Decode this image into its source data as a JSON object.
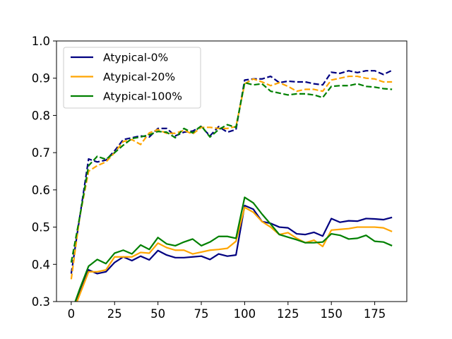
{
  "chart_data": {
    "type": "line",
    "title": "",
    "xlabel": "",
    "ylabel": "",
    "xlim": [
      -8.5,
      193.5
    ],
    "ylim": [
      0.3,
      1.0
    ],
    "xticks": [
      0,
      25,
      50,
      75,
      100,
      125,
      150,
      175
    ],
    "yticks": [
      0.3,
      0.4,
      0.5,
      0.6,
      0.7,
      0.8,
      0.9,
      1.0
    ],
    "grid": false,
    "legend_position": "top-left",
    "x": [
      0,
      5,
      10,
      15,
      20,
      25,
      30,
      35,
      40,
      45,
      50,
      55,
      60,
      65,
      70,
      75,
      80,
      85,
      90,
      95,
      100,
      105,
      110,
      115,
      120,
      125,
      130,
      135,
      140,
      145,
      150,
      155,
      160,
      165,
      170,
      175,
      180,
      185
    ],
    "series": [
      {
        "name": "Atypical-0%",
        "color": "#000080",
        "style": "solid",
        "values": [
          0.27,
          0.33,
          0.385,
          0.375,
          0.38,
          0.405,
          0.42,
          0.41,
          0.422,
          0.412,
          0.437,
          0.425,
          0.418,
          0.418,
          0.42,
          0.422,
          0.413,
          0.428,
          0.422,
          0.425,
          0.558,
          0.548,
          0.515,
          0.51,
          0.5,
          0.498,
          0.482,
          0.48,
          0.486,
          0.476,
          0.523,
          0.513,
          0.517,
          0.516,
          0.523,
          0.522,
          0.52,
          0.526
        ]
      },
      {
        "name": "Atypical-20%",
        "color": "#ffa500",
        "style": "solid",
        "values": [
          0.26,
          0.32,
          0.38,
          0.38,
          0.385,
          0.42,
          0.42,
          0.42,
          0.432,
          0.43,
          0.457,
          0.445,
          0.438,
          0.438,
          0.428,
          0.433,
          0.438,
          0.44,
          0.443,
          0.462,
          0.553,
          0.54,
          0.515,
          0.5,
          0.48,
          0.485,
          0.47,
          0.458,
          0.465,
          0.448,
          0.492,
          0.494,
          0.496,
          0.5,
          0.5,
          0.5,
          0.498,
          0.488
        ]
      },
      {
        "name": "Atypical-100%",
        "color": "#008000",
        "style": "solid",
        "values": [
          0.27,
          0.335,
          0.395,
          0.413,
          0.402,
          0.43,
          0.438,
          0.428,
          0.452,
          0.44,
          0.472,
          0.455,
          0.45,
          0.46,
          0.468,
          0.45,
          0.46,
          0.475,
          0.475,
          0.47,
          0.58,
          0.565,
          0.535,
          0.508,
          0.48,
          0.473,
          0.466,
          0.458,
          0.458,
          0.46,
          0.482,
          0.478,
          0.468,
          0.47,
          0.478,
          0.462,
          0.46,
          0.45
        ]
      },
      {
        "name": "",
        "color": "#000080",
        "style": "dashed",
        "values": [
          0.375,
          0.53,
          0.683,
          0.675,
          0.68,
          0.705,
          0.735,
          0.74,
          0.745,
          0.742,
          0.765,
          0.765,
          0.745,
          0.755,
          0.758,
          0.77,
          0.745,
          0.77,
          0.755,
          0.762,
          0.895,
          0.898,
          0.898,
          0.905,
          0.888,
          0.892,
          0.89,
          0.89,
          0.885,
          0.882,
          0.916,
          0.913,
          0.92,
          0.915,
          0.92,
          0.92,
          0.91,
          0.921
        ]
      },
      {
        "name": "",
        "color": "#ffa500",
        "style": "dashed",
        "values": [
          0.36,
          0.53,
          0.65,
          0.665,
          0.675,
          0.7,
          0.73,
          0.735,
          0.722,
          0.753,
          0.762,
          0.752,
          0.752,
          0.76,
          0.75,
          0.768,
          0.768,
          0.765,
          0.765,
          0.77,
          0.885,
          0.898,
          0.89,
          0.88,
          0.888,
          0.878,
          0.865,
          0.87,
          0.87,
          0.865,
          0.895,
          0.9,
          0.905,
          0.905,
          0.9,
          0.898,
          0.89,
          0.89
        ]
      },
      {
        "name": "",
        "color": "#008000",
        "style": "dashed",
        "values": [
          0.405,
          0.53,
          0.665,
          0.69,
          0.682,
          0.7,
          0.72,
          0.738,
          0.742,
          0.748,
          0.757,
          0.755,
          0.74,
          0.765,
          0.753,
          0.772,
          0.742,
          0.762,
          0.775,
          0.768,
          0.888,
          0.882,
          0.885,
          0.865,
          0.86,
          0.855,
          0.858,
          0.858,
          0.855,
          0.848,
          0.878,
          0.88,
          0.88,
          0.885,
          0.878,
          0.876,
          0.872,
          0.87
        ]
      }
    ]
  }
}
